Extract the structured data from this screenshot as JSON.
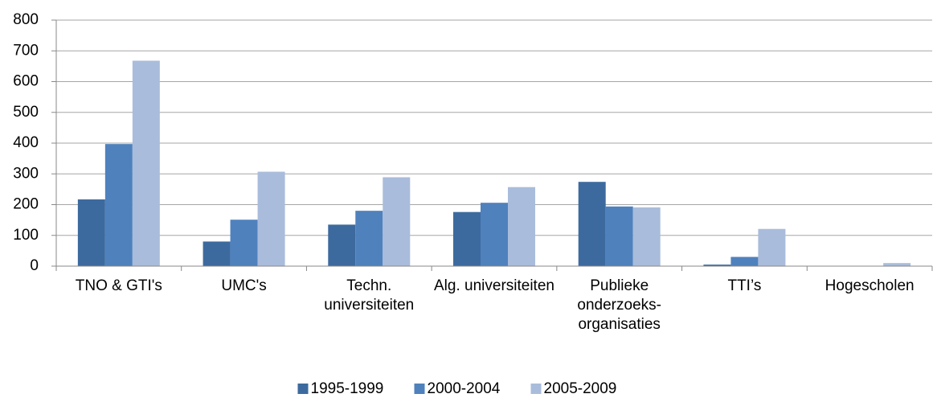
{
  "chart_data": {
    "type": "bar",
    "categories": [
      "TNO & GTI's",
      "UMC's",
      "Techn. universiteiten",
      "Alg. universiteiten",
      "Publieke onderzoeks-organisaties",
      "TTI’s",
      "Hogescholen"
    ],
    "series": [
      {
        "name": "1995-1999",
        "color": "#3d6a9e",
        "values": [
          217,
          80,
          135,
          176,
          274,
          5,
          0
        ]
      },
      {
        "name": "2000-2004",
        "color": "#4f81bd",
        "values": [
          397,
          151,
          180,
          206,
          194,
          30,
          0
        ]
      },
      {
        "name": "2005-2009",
        "color": "#a9bcdb",
        "values": [
          668,
          307,
          289,
          257,
          191,
          121,
          10
        ]
      }
    ],
    "ylim": [
      0,
      800
    ],
    "yticks": [
      0,
      100,
      200,
      300,
      400,
      500,
      600,
      700,
      800
    ],
    "grid": true,
    "legend": "bottom"
  }
}
